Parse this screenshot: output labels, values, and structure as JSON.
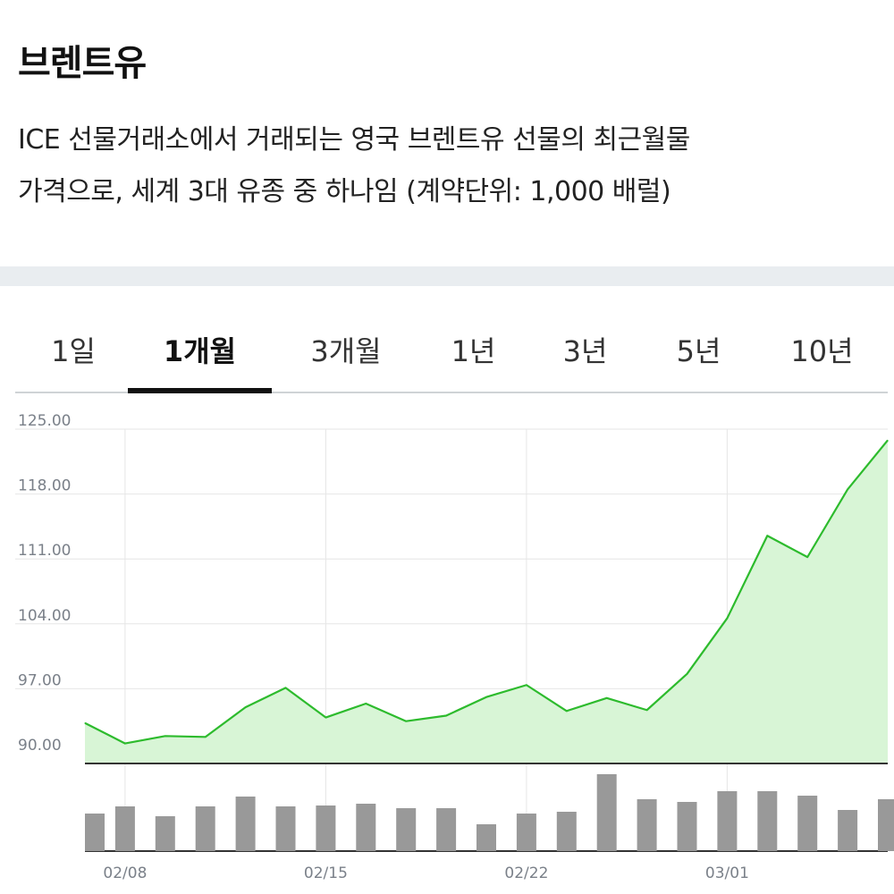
{
  "header": {
    "title": "브렌트유",
    "description_lines": [
      "ICE 선물거래소에서 거래되는 영국 브렌트유 선물의 최근월물",
      "가격으로, 세계 3대 유종 중 하나임 (계약단위: 1,000 배럴)"
    ]
  },
  "tabs": [
    {
      "label": "1일",
      "active": false
    },
    {
      "label": "1개월",
      "active": true
    },
    {
      "label": "3개월",
      "active": false
    },
    {
      "label": "1년",
      "active": false
    },
    {
      "label": "3년",
      "active": false
    },
    {
      "label": "5년",
      "active": false
    },
    {
      "label": "10년",
      "active": false
    }
  ],
  "colors": {
    "line": "#2dbb2d",
    "area": "#d8f5d6",
    "volume_bar": "#999999",
    "grid": "#e6e6e6",
    "axis_text": "#7a8089"
  },
  "chart_data": {
    "type": "line",
    "title": "",
    "xlabel": "",
    "ylabel": "",
    "ylim": [
      90,
      125
    ],
    "y_ticks": [
      "125.00",
      "118.00",
      "111.00",
      "104.00",
      "97.00",
      "90.00"
    ],
    "x_tick_labels": [
      "02/08",
      "02/15",
      "02/22",
      "03/01"
    ],
    "grid": true,
    "series": [
      {
        "values": [
          93.3,
          91.1,
          91.9,
          91.8,
          95.0,
          97.1,
          93.9,
          95.4,
          93.5,
          94.1,
          96.1,
          97.4,
          94.6,
          96.0,
          94.7,
          98.6,
          104.6,
          113.5,
          111.2,
          118.5,
          123.8
        ]
      }
    ],
    "volume": [
      42,
      50,
      39,
      50,
      61,
      50,
      51,
      53,
      48,
      48,
      30,
      42,
      44,
      86,
      58,
      55,
      67,
      67,
      62,
      46,
      58
    ]
  }
}
